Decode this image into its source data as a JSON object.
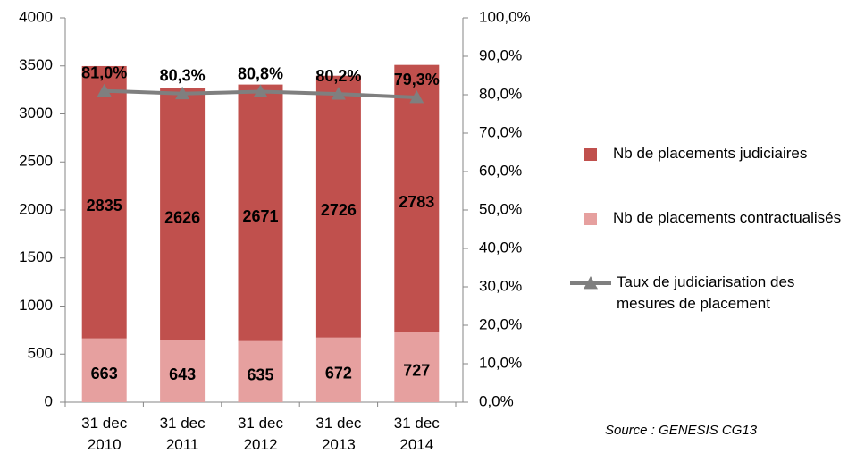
{
  "chart_data": {
    "type": "bar",
    "categories": [
      "31 dec 2010",
      "31 dec 2011",
      "31 dec 2012",
      "31 dec 2013",
      "31 dec 2014"
    ],
    "series": [
      {
        "name": "Nb de placements judiciaires",
        "color": "#c0504d",
        "values": [
          2835,
          2626,
          2671,
          2726,
          2783
        ]
      },
      {
        "name": "Nb de placements contractualisés",
        "color": "#e6a09f",
        "values": [
          663,
          643,
          635,
          672,
          727
        ]
      },
      {
        "name": "Taux de judiciarisation des mesures de placement",
        "type": "line",
        "axis": "y2",
        "color": "#7f7f7f",
        "values": [
          81.0,
          80.3,
          80.8,
          80.2,
          79.3
        ],
        "value_labels": [
          "81,0%",
          "80,3%",
          "80,8%",
          "80,2%",
          "79,3%"
        ]
      }
    ],
    "stacked": true,
    "ylim": [
      0,
      4000
    ],
    "yticks": [
      0,
      500,
      1000,
      1500,
      2000,
      2500,
      3000,
      3500,
      4000
    ],
    "y2lim": [
      0,
      100
    ],
    "y2ticks": [
      {
        "value": 0,
        "label": "0,0%"
      },
      {
        "value": 10,
        "label": "10,0%"
      },
      {
        "value": 20,
        "label": "20,0%"
      },
      {
        "value": 30,
        "label": "30,0%"
      },
      {
        "value": 40,
        "label": "40,0%"
      },
      {
        "value": 50,
        "label": "50,0%"
      },
      {
        "value": 60,
        "label": "60,0%"
      },
      {
        "value": 70,
        "label": "70,0%"
      },
      {
        "value": 80,
        "label": "80,0%"
      },
      {
        "value": 90,
        "label": "90,0%"
      },
      {
        "value": 100,
        "label": "100,0%"
      }
    ],
    "legend": "right",
    "source": "Source : GENESIS CG13"
  }
}
